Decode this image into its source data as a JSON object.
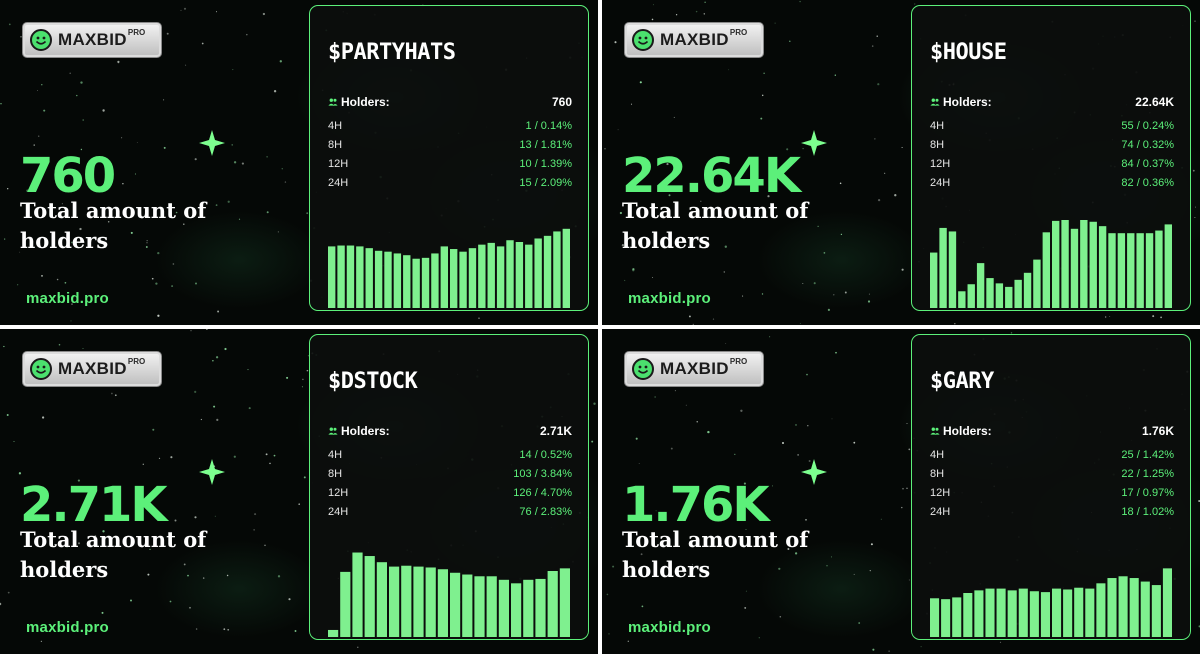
{
  "brand": {
    "name": "MAXBID",
    "tier": "PRO",
    "site": "maxbid.pro"
  },
  "caption": "Total amount of holders",
  "holders_label": "Holders:",
  "colors": {
    "accent": "#5cf07a",
    "bar": "#7ff08f",
    "background": "#050806",
    "card": "#0c0e0d"
  },
  "panels": [
    {
      "ticker": "$PARTYHATS",
      "total": "760",
      "holders": "760",
      "periods": [
        {
          "label": "4H",
          "value": "1 / 0.14%"
        },
        {
          "label": "8H",
          "value": "13 / 1.81%"
        },
        {
          "label": "12H",
          "value": "10 / 1.39%"
        },
        {
          "label": "24H",
          "value": "15 / 2.09%"
        }
      ],
      "bars": [
        0.7,
        0.71,
        0.71,
        0.7,
        0.68,
        0.65,
        0.64,
        0.62,
        0.6,
        0.56,
        0.57,
        0.62,
        0.7,
        0.67,
        0.64,
        0.68,
        0.72,
        0.74,
        0.7,
        0.77,
        0.75,
        0.72,
        0.79,
        0.82,
        0.87,
        0.9
      ]
    },
    {
      "ticker": "$HOUSE",
      "total": "22.64K",
      "holders": "22.64K",
      "periods": [
        {
          "label": "4H",
          "value": "55 / 0.24%"
        },
        {
          "label": "8H",
          "value": "74 / 0.32%"
        },
        {
          "label": "12H",
          "value": "84 / 0.37%"
        },
        {
          "label": "24H",
          "value": "82 / 0.36%"
        }
      ],
      "bars": [
        0.63,
        0.91,
        0.87,
        0.19,
        0.27,
        0.51,
        0.34,
        0.28,
        0.24,
        0.32,
        0.4,
        0.55,
        0.86,
        0.99,
        1.0,
        0.9,
        1.0,
        0.98,
        0.93,
        0.85,
        0.85,
        0.85,
        0.85,
        0.85,
        0.88,
        0.95
      ]
    },
    {
      "ticker": "$DSTOCK",
      "total": "2.71K",
      "holders": "2.71K",
      "periods": [
        {
          "label": "4H",
          "value": "14 / 0.52%"
        },
        {
          "label": "8H",
          "value": "103 / 3.84%"
        },
        {
          "label": "12H",
          "value": "126 / 4.70%"
        },
        {
          "label": "24H",
          "value": "76 / 2.83%"
        }
      ],
      "bars": [
        0.08,
        0.74,
        0.96,
        0.92,
        0.85,
        0.8,
        0.81,
        0.8,
        0.79,
        0.77,
        0.73,
        0.71,
        0.69,
        0.69,
        0.65,
        0.61,
        0.65,
        0.66,
        0.75,
        0.78
      ]
    },
    {
      "ticker": "$GARY",
      "total": "1.76K",
      "holders": "1.76K",
      "periods": [
        {
          "label": "4H",
          "value": "25 / 1.42%"
        },
        {
          "label": "8H",
          "value": "22 / 1.25%"
        },
        {
          "label": "12H",
          "value": "17 / 0.97%"
        },
        {
          "label": "24H",
          "value": "18 / 1.02%"
        }
      ],
      "bars": [
        0.44,
        0.43,
        0.45,
        0.5,
        0.53,
        0.55,
        0.55,
        0.53,
        0.55,
        0.52,
        0.51,
        0.55,
        0.54,
        0.56,
        0.55,
        0.61,
        0.67,
        0.69,
        0.67,
        0.63,
        0.59,
        0.78
      ]
    }
  ]
}
